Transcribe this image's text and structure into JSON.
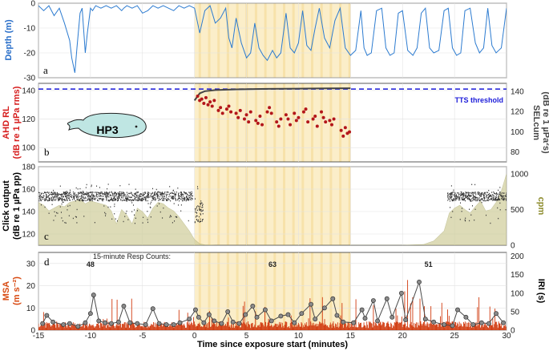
{
  "chart_data": [
    {
      "panel": "a",
      "type": "line",
      "ylabel": "Depth (m)",
      "ylabel_color": "#2a6fc9",
      "ylim": [
        -30,
        0
      ],
      "yticks": [
        0,
        -10,
        -20,
        -30
      ],
      "xlim": [
        -15,
        30
      ],
      "series": [
        {
          "color": "#2c7bd0",
          "x": [
            -15,
            -14.5,
            -14,
            -13.5,
            -13,
            -12.5,
            -12,
            -11.8,
            -11.5,
            -11.3,
            -11.0,
            -10.8,
            -10.5,
            -10.3,
            -10.0,
            -9.8,
            -9.5,
            -9.0,
            -8.5,
            -8.0,
            -7.5,
            -7.0,
            -6.8,
            -6.5,
            -6.0,
            -5.5,
            -5.0,
            -4.5,
            -4.0,
            -3.5,
            -3.0,
            -2.5,
            -2.0,
            -1.5,
            -1.0,
            -0.5,
            0,
            0.5,
            1.0,
            1.5,
            2.0,
            2.5,
            3.0,
            3.3,
            3.6,
            4.0,
            4.5,
            5.0,
            5.4,
            5.8,
            6.2,
            6.6,
            7.0,
            7.5,
            7.9,
            8.3,
            8.8,
            9.2,
            9.6,
            10.0,
            10.4,
            10.8,
            11.2,
            11.6,
            12.0,
            12.5,
            13.0,
            13.5,
            14.0,
            14.5,
            15.0,
            15.5,
            16.0,
            16.3,
            16.6,
            17.0,
            17.5,
            18.0,
            18.4,
            18.8,
            19.2,
            19.6,
            20.0,
            20.5,
            21.0,
            21.4,
            21.8,
            22.2,
            22.6,
            23.0,
            23.5,
            24.0,
            24.4,
            24.8,
            25.2,
            25.6,
            26.0,
            26.5,
            27.0,
            27.4,
            27.8,
            28.2,
            28.6,
            29.0,
            29.5,
            30.0
          ],
          "y": [
            -1,
            -3,
            -1,
            -5,
            -2,
            -8,
            -15,
            -22,
            -28,
            -18,
            -4,
            -2,
            -20,
            -12,
            -2,
            -3,
            -1,
            -2,
            -1,
            -2,
            -1,
            -3,
            -2,
            -1,
            -2,
            -1,
            -4,
            -3,
            -1,
            -2,
            -1,
            -2,
            -3,
            -1,
            -2,
            -1,
            -2,
            -12,
            -3,
            -1,
            -8,
            -6,
            -2,
            -14,
            -18,
            -6,
            -16,
            -22,
            -20,
            -8,
            -18,
            -21,
            -23,
            -19,
            -22,
            -20,
            -4,
            -18,
            -20,
            -16,
            -3,
            -17,
            -19,
            -10,
            -2,
            -14,
            -18,
            -7,
            -2,
            -18,
            -21,
            -19,
            -3,
            -18,
            -21,
            -20,
            -3,
            -2,
            -18,
            -21,
            -20,
            -4,
            -3,
            -19,
            -21,
            -18,
            -4,
            -2,
            -18,
            -20,
            -19,
            -3,
            -2,
            -18,
            -21,
            -20,
            -3,
            -2,
            -16,
            -20,
            -18,
            -2,
            -17,
            -20,
            -18,
            -2
          ]
        }
      ]
    },
    {
      "panel": "b",
      "type": "scatter",
      "ylabel": [
        "AHD RL",
        "(dB re 1 µPa rms)"
      ],
      "ylabel_color": "#d61c1c",
      "ylabel_right": [
        "SELcum",
        "(dB re 1 µPa²s)"
      ],
      "ylim": [
        90,
        145
      ],
      "yticks": [
        100,
        120,
        140
      ],
      "yticks_right": [
        80,
        100,
        120,
        140
      ],
      "threshold_value": 141,
      "threshold_label": "TTS threshold",
      "threshold_color": "#1b1bd9",
      "animal_label": "HP3",
      "points": [
        [
          0.3,
          136
        ],
        [
          0.5,
          133
        ],
        [
          0.7,
          134
        ],
        [
          0.9,
          131
        ],
        [
          1.1,
          135
        ],
        [
          1.3,
          130
        ],
        [
          1.5,
          132
        ],
        [
          1.7,
          129
        ],
        [
          1.9,
          133
        ],
        [
          2.3,
          126
        ],
        [
          2.5,
          128
        ],
        [
          2.7,
          124
        ],
        [
          3.1,
          127
        ],
        [
          3.3,
          129
        ],
        [
          3.5,
          125
        ],
        [
          4.0,
          124
        ],
        [
          4.2,
          121
        ],
        [
          4.4,
          126
        ],
        [
          4.8,
          120
        ],
        [
          5.0,
          123
        ],
        [
          5.2,
          118
        ],
        [
          5.4,
          125
        ],
        [
          5.9,
          119
        ],
        [
          6.1,
          117
        ],
        [
          6.3,
          122
        ],
        [
          6.5,
          116
        ],
        [
          7.0,
          125
        ],
        [
          7.2,
          128
        ],
        [
          7.4,
          124
        ],
        [
          7.9,
          118
        ],
        [
          8.1,
          115
        ],
        [
          8.3,
          120
        ],
        [
          8.8,
          123
        ],
        [
          9.0,
          120
        ],
        [
          9.2,
          116
        ],
        [
          9.6,
          124
        ],
        [
          9.8,
          119
        ],
        [
          10.0,
          121
        ],
        [
          10.5,
          125
        ],
        [
          10.7,
          127
        ],
        [
          10.9,
          118
        ],
        [
          11.4,
          120
        ],
        [
          11.6,
          122
        ],
        [
          11.8,
          115
        ],
        [
          12.2,
          125
        ],
        [
          12.4,
          121
        ],
        [
          12.6,
          118
        ],
        [
          13.0,
          119
        ],
        [
          13.2,
          116
        ],
        [
          13.4,
          120
        ],
        [
          14.1,
          112
        ],
        [
          14.3,
          108
        ],
        [
          14.5,
          114
        ],
        [
          14.7,
          110
        ],
        [
          14.9,
          111
        ]
      ],
      "selcum": [
        [
          0,
          133
        ],
        [
          0.5,
          138
        ],
        [
          1,
          139.5
        ],
        [
          2,
          140.3
        ],
        [
          4,
          140.8
        ],
        [
          7,
          141.1
        ],
        [
          10,
          141.3
        ],
        [
          13,
          141.5
        ],
        [
          15,
          141.6
        ]
      ]
    },
    {
      "panel": "c",
      "type": "scatter",
      "ylabel": [
        "Click output",
        "(dB re 1 µPa pp)"
      ],
      "ylabel_right": "cpm",
      "ylabel_right_color": "#8c8b2c",
      "ylim": [
        110,
        180
      ],
      "yticks": [
        120,
        140,
        160,
        180
      ],
      "yticks_right": [
        0,
        500,
        1000
      ],
      "cpm_area": {
        "x": [
          -15,
          -14.5,
          -14,
          -13.5,
          -13,
          -12.5,
          -12,
          -11.5,
          -11,
          -10.5,
          -10,
          -9.5,
          -9,
          -8.5,
          -8,
          -7.5,
          -7,
          -6.5,
          -6,
          -5.5,
          -5,
          -4.5,
          -4,
          -3.5,
          -3,
          -2.5,
          -2,
          -1.5,
          -1,
          -0.5,
          0,
          0.5,
          1,
          2,
          5,
          10,
          15,
          20,
          22,
          23,
          24,
          24.5,
          25,
          25.5,
          26,
          26.5,
          27,
          27.5,
          28,
          28.5,
          29,
          29.5,
          30
        ],
        "y": [
          600,
          560,
          480,
          520,
          560,
          540,
          600,
          620,
          650,
          580,
          620,
          600,
          580,
          560,
          480,
          300,
          500,
          420,
          300,
          520,
          470,
          380,
          520,
          600,
          580,
          520,
          480,
          400,
          300,
          200,
          80,
          20,
          5,
          0,
          0,
          0,
          0,
          0,
          10,
          60,
          200,
          450,
          520,
          560,
          500,
          450,
          540,
          620,
          480,
          500,
          600,
          760,
          1000
        ]
      },
      "click_segments": [
        [
          -15,
          -0.2,
          150,
          158
        ],
        [
          0,
          0.8,
          130,
          150
        ],
        [
          24.3,
          30,
          150,
          158
        ]
      ]
    },
    {
      "panel": "d",
      "type": "line",
      "ylabel": [
        "MSA",
        "(m s⁻²)"
      ],
      "ylabel_color": "#d84a12",
      "ylabel_right": "IRI (s)",
      "ylim": [
        0,
        35
      ],
      "yticks": [
        0,
        10,
        20,
        30
      ],
      "yticks_right": [
        0,
        50,
        100,
        150,
        200
      ],
      "legend_title": "15-minute Resp Counts:",
      "resp_counts": [
        {
          "x": -10,
          "label": "48"
        },
        {
          "x": 7.5,
          "label": "63"
        },
        {
          "x": 22.5,
          "label": "51"
        }
      ],
      "msa_color": "#d13a0f",
      "iri_color": "#4a4a4a",
      "iri_points": [
        [
          -14.6,
          18
        ],
        [
          -14.2,
          40
        ],
        [
          -13.6,
          22
        ],
        [
          -12.6,
          15
        ],
        [
          -12.0,
          18
        ],
        [
          -11.2,
          10
        ],
        [
          -10.5,
          20
        ],
        [
          -10.0,
          45
        ],
        [
          -9.7,
          95
        ],
        [
          -9.2,
          25
        ],
        [
          -8.6,
          20
        ],
        [
          -8.0,
          18
        ],
        [
          -7.3,
          22
        ],
        [
          -6.8,
          65
        ],
        [
          -6.2,
          20
        ],
        [
          -5.5,
          18
        ],
        [
          -4.7,
          15
        ],
        [
          -4.0,
          58
        ],
        [
          -3.4,
          18
        ],
        [
          -2.7,
          15
        ],
        [
          -2.0,
          15
        ],
        [
          -1.4,
          20
        ],
        [
          -0.5,
          30
        ],
        [
          0.1,
          55
        ],
        [
          0.4,
          35
        ],
        [
          0.9,
          20
        ],
        [
          1.4,
          42
        ],
        [
          1.9,
          25
        ],
        [
          2.6,
          18
        ],
        [
          3.2,
          50
        ],
        [
          3.7,
          22
        ],
        [
          4.3,
          18
        ],
        [
          4.9,
          42
        ],
        [
          5.6,
          65
        ],
        [
          6.0,
          35
        ],
        [
          6.8,
          55
        ],
        [
          7.4,
          25
        ],
        [
          8.3,
          38
        ],
        [
          9.0,
          42
        ],
        [
          9.6,
          20
        ],
        [
          10.3,
          45
        ],
        [
          11.2,
          70
        ],
        [
          11.6,
          30
        ],
        [
          12.5,
          60
        ],
        [
          13.3,
          85
        ],
        [
          13.7,
          40
        ],
        [
          14.3,
          22
        ],
        [
          15.3,
          20
        ],
        [
          16.1,
          55
        ],
        [
          16.4,
          32
        ],
        [
          17.2,
          80
        ],
        [
          17.6,
          25
        ],
        [
          18.5,
          85
        ],
        [
          19.0,
          35
        ],
        [
          19.9,
          100
        ],
        [
          20.3,
          28
        ],
        [
          21.6,
          130
        ],
        [
          22.2,
          30
        ],
        [
          23.0,
          22
        ],
        [
          24.0,
          15
        ],
        [
          24.8,
          12
        ],
        [
          25.3,
          55
        ],
        [
          26.1,
          35
        ],
        [
          26.8,
          15
        ],
        [
          27.6,
          20
        ],
        [
          28.3,
          18
        ],
        [
          29.0,
          45
        ],
        [
          29.7,
          20
        ]
      ]
    }
  ],
  "panel_letters": [
    "a",
    "b",
    "c",
    "d"
  ],
  "xlabel": "Time since exposure start (minutes)",
  "xticks": [
    -15,
    -10,
    -5,
    0,
    5,
    10,
    15,
    20,
    25,
    30
  ],
  "xlim": [
    -15,
    30
  ],
  "exposure_window": [
    0,
    15
  ],
  "shade_color": "#fbeec9",
  "shade_stripe_color": "#f6dfa3"
}
